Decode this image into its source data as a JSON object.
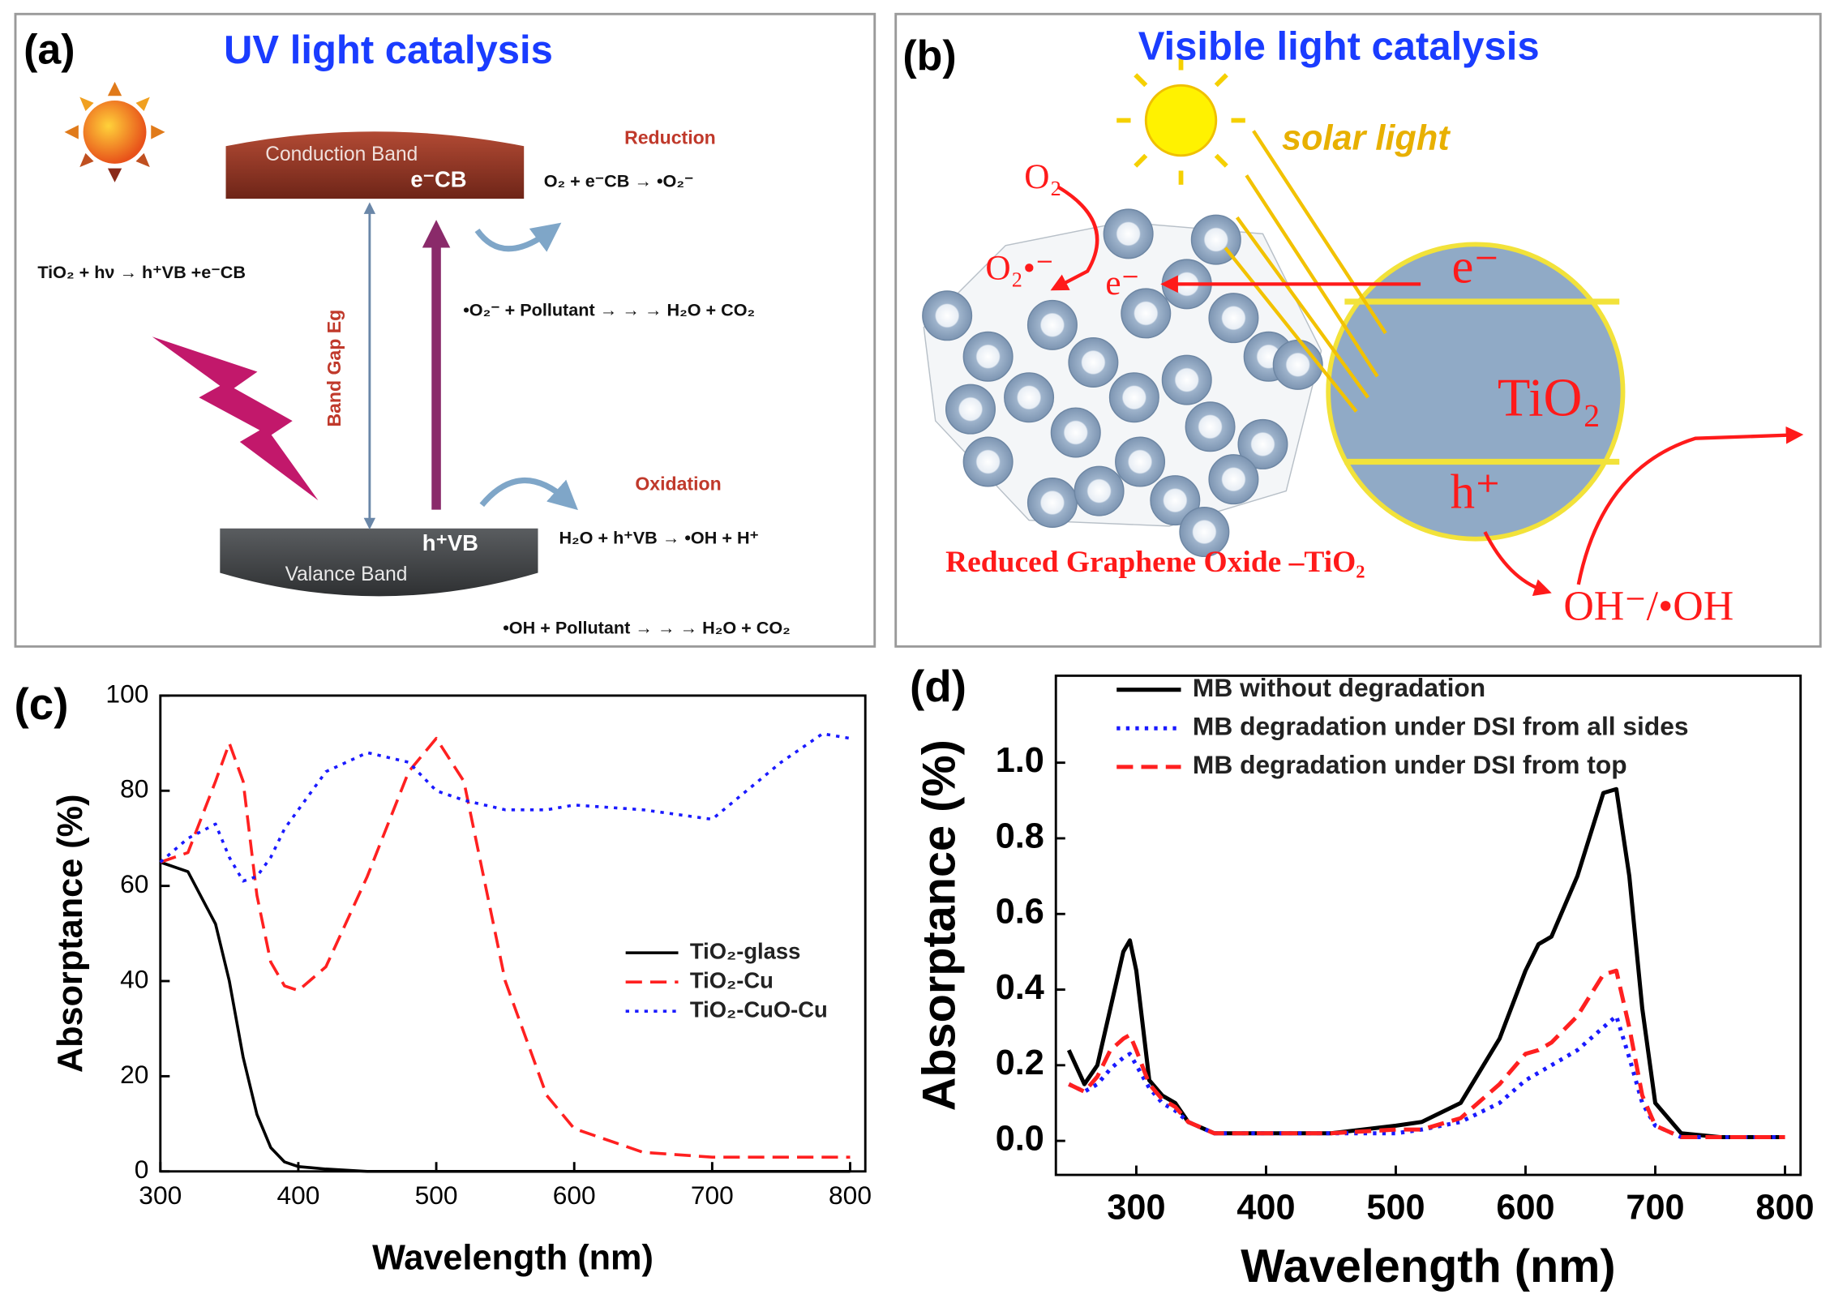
{
  "diagram_a": {
    "label": "(a)",
    "title": "UV light catalysis",
    "conduction_band": "Conduction Band",
    "e_cb": "e⁻CB",
    "valence_band": "Valance Band",
    "h_vb": "h⁺VB",
    "band_gap": "Band Gap  Eg",
    "reduction": "Reduction",
    "oxidation": "Oxidation",
    "eq_excitation": "TiO₂ + hν → h⁺VB +e⁻CB",
    "eq_reduction": "O₂ + e⁻CB →  •O₂⁻",
    "eq_superoxide": "•O₂⁻ + Pollutant → → → H₂O + CO₂",
    "eq_oxidation": "H₂O + h⁺VB →  •OH + H⁺",
    "eq_hydroxyl": "•OH + Pollutant → → → H₂O + CO₂"
  },
  "diagram_b": {
    "label": "(b)",
    "title": "Visible  light catalysis",
    "solar_light": "solar light",
    "o2": "O₂",
    "o2_radical": "O₂•⁻",
    "e_graphene": "e⁻",
    "e_tio2": "e⁻",
    "tio2": "TiO₂",
    "h_tio2": "h⁺",
    "caption": "Reduced Graphene Oxide –TiO₂",
    "oh": "OH⁻/•OH"
  },
  "chart_data": [
    {
      "type": "line",
      "label": "(c)",
      "xlabel": "Wavelength (nm)",
      "ylabel": "Absorptance (%)",
      "xlim": [
        300,
        811
      ],
      "ylim": [
        0,
        100
      ],
      "xticks": [
        300,
        400,
        500,
        600,
        700,
        800
      ],
      "yticks": [
        0,
        20,
        40,
        60,
        80,
        100
      ],
      "x": [
        300,
        320,
        340,
        350,
        360,
        370,
        380,
        390,
        400,
        420,
        450,
        480,
        500,
        520,
        550,
        580,
        600,
        650,
        700,
        750,
        780,
        800
      ],
      "series": [
        {
          "name": "TiO₂-glass",
          "color": "#000000",
          "style": "solid",
          "values": [
            65,
            63,
            52,
            40,
            24,
            12,
            5,
            2,
            1,
            0.5,
            0,
            0,
            0,
            0,
            0,
            0,
            0,
            0,
            0,
            0,
            0,
            0
          ]
        },
        {
          "name": "TiO₂-Cu",
          "color": "#ff2020",
          "style": "dashed",
          "values": [
            65,
            67,
            82,
            90,
            82,
            58,
            44,
            39,
            38,
            43,
            62,
            84,
            91,
            82,
            40,
            16,
            9,
            4,
            3,
            3,
            3,
            3
          ]
        },
        {
          "name": "TiO₂-CuO-Cu",
          "color": "#1a1aff",
          "style": "dotted",
          "values": [
            65,
            70,
            73,
            66,
            61,
            62,
            66,
            72,
            76,
            84,
            88,
            86,
            80,
            78,
            76,
            76,
            77,
            76,
            74,
            86,
            92,
            91
          ]
        }
      ]
    },
    {
      "type": "line",
      "label": "(d)",
      "xlabel": "Wavelength (nm)",
      "ylabel": "Absorptance (%)",
      "xlim": [
        238,
        812
      ],
      "ylim": [
        -0.09,
        1.23
      ],
      "xticks": [
        300,
        400,
        500,
        600,
        700,
        800
      ],
      "yticks": [
        {
          "value": 0,
          "label": "0.0"
        },
        {
          "value": 0.2,
          "label": "0.2"
        },
        {
          "value": 0.4,
          "label": "0.4"
        },
        {
          "value": 0.6,
          "label": "0.6"
        },
        {
          "value": 0.8,
          "label": "0.8"
        },
        {
          "value": 1,
          "label": "1.0"
        }
      ],
      "x": [
        248,
        260,
        270,
        280,
        290,
        295,
        300,
        310,
        320,
        330,
        340,
        360,
        400,
        450,
        500,
        520,
        550,
        580,
        600,
        610,
        620,
        640,
        660,
        670,
        680,
        690,
        700,
        720,
        750,
        800
      ],
      "series": [
        {
          "name": "MB without degradation",
          "color": "#000000",
          "style": "solid",
          "values": [
            0.24,
            0.15,
            0.2,
            0.35,
            0.5,
            0.53,
            0.45,
            0.16,
            0.12,
            0.1,
            0.05,
            0.02,
            0.02,
            0.02,
            0.04,
            0.05,
            0.1,
            0.27,
            0.45,
            0.52,
            0.54,
            0.7,
            0.92,
            0.93,
            0.7,
            0.35,
            0.1,
            0.02,
            0.01,
            0.01
          ]
        },
        {
          "name": "MB degradation under DSI from all sides",
          "color": "#1a1aff",
          "style": "dotted",
          "values": [
            0.15,
            0.13,
            0.15,
            0.19,
            0.22,
            0.23,
            0.2,
            0.14,
            0.1,
            0.08,
            0.05,
            0.02,
            0.02,
            0.02,
            0.02,
            0.03,
            0.05,
            0.1,
            0.16,
            0.18,
            0.2,
            0.24,
            0.3,
            0.33,
            0.22,
            0.1,
            0.04,
            0.01,
            0.01,
            0.01
          ]
        },
        {
          "name": "MB degradation under DSI from top",
          "color": "#ff2020",
          "style": "dashed",
          "values": [
            0.15,
            0.13,
            0.17,
            0.24,
            0.27,
            0.28,
            0.24,
            0.15,
            0.11,
            0.09,
            0.05,
            0.02,
            0.02,
            0.02,
            0.03,
            0.03,
            0.06,
            0.15,
            0.23,
            0.24,
            0.26,
            0.33,
            0.44,
            0.45,
            0.3,
            0.12,
            0.04,
            0.01,
            0.01,
            0.01
          ]
        }
      ]
    }
  ]
}
